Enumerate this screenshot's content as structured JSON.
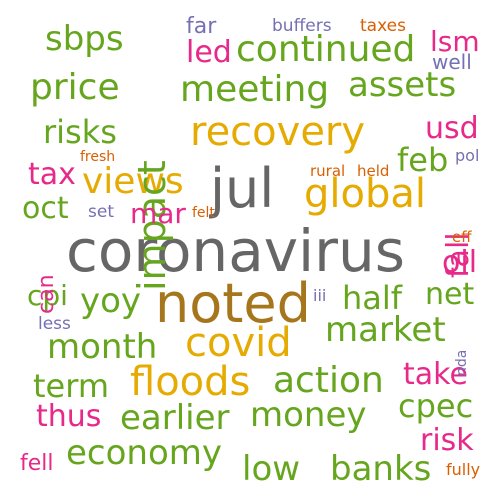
{
  "palette": {
    "green": "#66a61e",
    "pink": "#e7298a",
    "gold": "#e6ab02",
    "gray": "#666666",
    "purple": "#7570b3",
    "orange": "#d95f02",
    "brown": "#a6761d",
    "teal": "#1b9e77"
  },
  "words": [
    {
      "id": "coronavirus",
      "text": "coronavirus",
      "color": "#666666"
    },
    {
      "id": "noted",
      "text": "noted",
      "color": "#a6761d"
    },
    {
      "id": "jul",
      "text": "jul",
      "color": "#666666"
    },
    {
      "id": "recovery",
      "text": "recovery",
      "color": "#e6ab02"
    },
    {
      "id": "global",
      "text": "global",
      "color": "#e6ab02"
    },
    {
      "id": "views",
      "text": "views",
      "color": "#e6ab02"
    },
    {
      "id": "covid",
      "text": "covid",
      "color": "#e6ab02"
    },
    {
      "id": "floods",
      "text": "floods",
      "color": "#e6ab02"
    },
    {
      "id": "impact",
      "text": "impact",
      "color": "#66a61e"
    },
    {
      "id": "continued",
      "text": "continued",
      "color": "#66a61e"
    },
    {
      "id": "meeting",
      "text": "meeting",
      "color": "#66a61e"
    },
    {
      "id": "assets",
      "text": "assets",
      "color": "#66a61e"
    },
    {
      "id": "price",
      "text": "price",
      "color": "#66a61e"
    },
    {
      "id": "sbps",
      "text": "sbps",
      "color": "#66a61e"
    },
    {
      "id": "risks",
      "text": "risks",
      "color": "#66a61e"
    },
    {
      "id": "feb",
      "text": "feb",
      "color": "#66a61e"
    },
    {
      "id": "oct",
      "text": "oct",
      "color": "#66a61e"
    },
    {
      "id": "half",
      "text": "half",
      "color": "#66a61e"
    },
    {
      "id": "net",
      "text": "net",
      "color": "#66a61e"
    },
    {
      "id": "cpi",
      "text": "cpi",
      "color": "#66a61e"
    },
    {
      "id": "yoy",
      "text": "yoy",
      "color": "#66a61e"
    },
    {
      "id": "market",
      "text": "market",
      "color": "#66a61e"
    },
    {
      "id": "month",
      "text": "month",
      "color": "#66a61e"
    },
    {
      "id": "term",
      "text": "term",
      "color": "#66a61e"
    },
    {
      "id": "action",
      "text": "action",
      "color": "#66a61e"
    },
    {
      "id": "earlier",
      "text": "earlier",
      "color": "#66a61e"
    },
    {
      "id": "money",
      "text": "money",
      "color": "#66a61e"
    },
    {
      "id": "cpec",
      "text": "cpec",
      "color": "#66a61e"
    },
    {
      "id": "economy",
      "text": "economy",
      "color": "#66a61e"
    },
    {
      "id": "low",
      "text": "low",
      "color": "#66a61e"
    },
    {
      "id": "banks",
      "text": "banks",
      "color": "#66a61e"
    },
    {
      "id": "led",
      "text": "led",
      "color": "#e7298a"
    },
    {
      "id": "lsm",
      "text": "lsm",
      "color": "#e7298a"
    },
    {
      "id": "usd",
      "text": "usd",
      "color": "#e7298a"
    },
    {
      "id": "tax",
      "text": "tax",
      "color": "#e7298a"
    },
    {
      "id": "mar",
      "text": "mar",
      "color": "#e7298a"
    },
    {
      "id": "fall",
      "text": "fall",
      "color": "#e7298a"
    },
    {
      "id": "oil",
      "text": "oil",
      "color": "#e7298a"
    },
    {
      "id": "can",
      "text": "can",
      "color": "#e7298a"
    },
    {
      "id": "take",
      "text": "take",
      "color": "#e7298a"
    },
    {
      "id": "thus",
      "text": "thus",
      "color": "#e7298a"
    },
    {
      "id": "risk",
      "text": "risk",
      "color": "#e7298a"
    },
    {
      "id": "fell",
      "text": "fell",
      "color": "#e7298a"
    },
    {
      "id": "far",
      "text": "far",
      "color": "#7570b3"
    },
    {
      "id": "buffers",
      "text": "buffers",
      "color": "#7570b3"
    },
    {
      "id": "well",
      "text": "well",
      "color": "#7570b3"
    },
    {
      "id": "pol",
      "text": "pol",
      "color": "#7570b3"
    },
    {
      "id": "set",
      "text": "set",
      "color": "#7570b3"
    },
    {
      "id": "iii",
      "text": "iii",
      "color": "#7570b3"
    },
    {
      "id": "less",
      "text": "less",
      "color": "#7570b3"
    },
    {
      "id": "nda",
      "text": "nda",
      "color": "#7570b3"
    },
    {
      "id": "taxes",
      "text": "taxes",
      "color": "#d95f02"
    },
    {
      "id": "fresh",
      "text": "fresh",
      "color": "#d95f02"
    },
    {
      "id": "rural",
      "text": "rural",
      "color": "#d95f02"
    },
    {
      "id": "held",
      "text": "held",
      "color": "#d95f02"
    },
    {
      "id": "felt",
      "text": "felt",
      "color": "#d95f02"
    },
    {
      "id": "eff",
      "text": "eff",
      "color": "#d95f02"
    },
    {
      "id": "fully",
      "text": "fully",
      "color": "#d95f02"
    }
  ]
}
